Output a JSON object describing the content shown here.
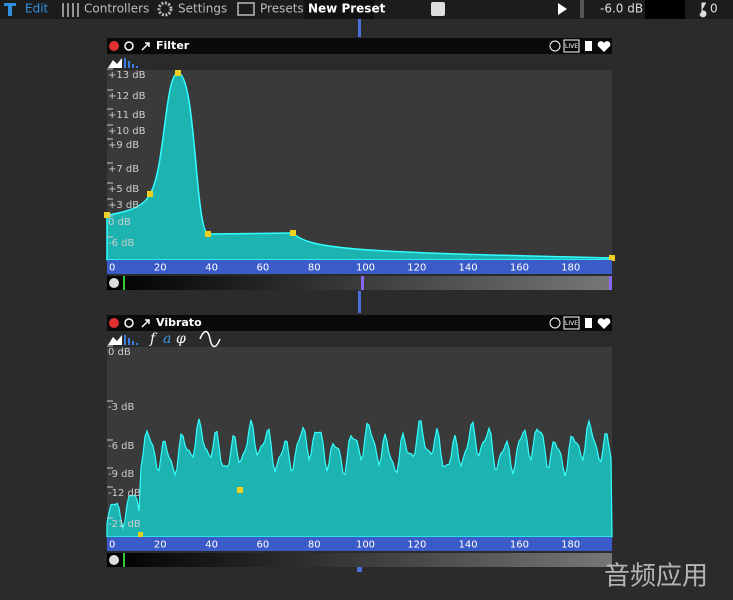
{
  "toolbar": {
    "edit": "Edit",
    "controllers": "Controllers",
    "settings": "Settings",
    "presets": "Presets",
    "preset_name": "New Preset",
    "volume": "-6.0 dB",
    "note": "0"
  },
  "panels": [
    {
      "title": "Filter",
      "y_labels": [
        "+13 dB",
        "+12 dB",
        "+11 dB",
        "+10 dB",
        "+9 dB",
        "+7 dB",
        "+5 dB",
        "+3 dB",
        "0 dB",
        "-6 dB"
      ],
      "x_labels": [
        0,
        20,
        40,
        60,
        80,
        100,
        120,
        140,
        160,
        180
      ],
      "live": "LIVE"
    },
    {
      "title": "Vibrato",
      "params": [
        "f",
        "a",
        "φ"
      ],
      "y_labels": [
        "0 dB",
        "-3 dB",
        "-6 dB",
        "-9 dB",
        "-12 dB",
        "-21 dB"
      ],
      "x_labels": [
        0,
        20,
        40,
        60,
        80,
        100,
        120,
        140,
        160,
        180
      ],
      "live": "LIVE"
    }
  ],
  "watermark": "音频应用"
}
